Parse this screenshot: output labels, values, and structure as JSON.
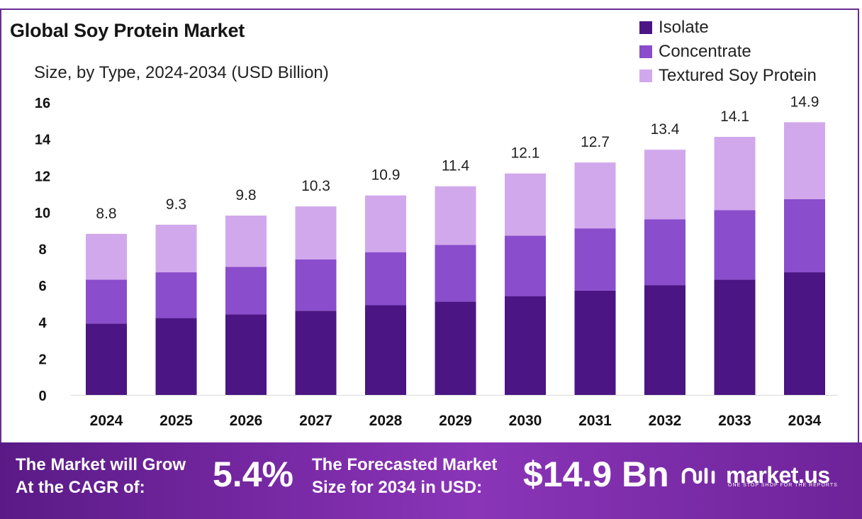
{
  "header": {
    "title": "Global Soy Protein Market",
    "subtitle": "Size, by Type, 2024-2034 (USD Billion)"
  },
  "legend": [
    {
      "label": "Isolate",
      "color": "#4b1584"
    },
    {
      "label": "Concentrate",
      "color": "#8a4dcc"
    },
    {
      "label": "Textured Soy Protein",
      "color": "#d2a8ec"
    }
  ],
  "chart_data": {
    "type": "bar",
    "stacked": true,
    "title": "Global Soy Protein Market",
    "subtitle": "Size, by Type, 2024-2034 (USD Billion)",
    "categories": [
      "2024",
      "2025",
      "2026",
      "2027",
      "2028",
      "2029",
      "2030",
      "2031",
      "2032",
      "2033",
      "2034"
    ],
    "series": [
      {
        "name": "Isolate",
        "color": "#4b1584",
        "values": [
          3.9,
          4.2,
          4.4,
          4.6,
          4.9,
          5.1,
          5.4,
          5.7,
          6.0,
          6.3,
          6.7
        ]
      },
      {
        "name": "Concentrate",
        "color": "#8a4dcc",
        "values": [
          2.4,
          2.5,
          2.6,
          2.8,
          2.9,
          3.1,
          3.3,
          3.4,
          3.6,
          3.8,
          4.0
        ]
      },
      {
        "name": "Textured Soy Protein",
        "color": "#d2a8ec",
        "values": [
          2.5,
          2.6,
          2.8,
          2.9,
          3.1,
          3.2,
          3.4,
          3.6,
          3.8,
          4.0,
          4.2
        ]
      }
    ],
    "totals": [
      "8.8",
      "9.3",
      "9.8",
      "10.3",
      "10.9",
      "11.4",
      "12.1",
      "12.7",
      "13.4",
      "14.1",
      "14.9"
    ],
    "y_ticks": [
      "0",
      "2",
      "4",
      "6",
      "8",
      "10",
      "12",
      "14",
      "16"
    ],
    "ylim": [
      0,
      16
    ],
    "grid": false,
    "legend_position": "top-right"
  },
  "banner": {
    "cagr_label_line1": "The Market will Grow",
    "cagr_label_line2": "At the CAGR of:",
    "cagr_value": "5.4%",
    "forecast_label_line1": "The Forecasted Market",
    "forecast_label_line2": "Size for 2034 in USD:",
    "forecast_value": "$14.9 Bn",
    "brand": "market.us",
    "tagline": "ONE STOP SHOP FOR THE REPORTS"
  }
}
